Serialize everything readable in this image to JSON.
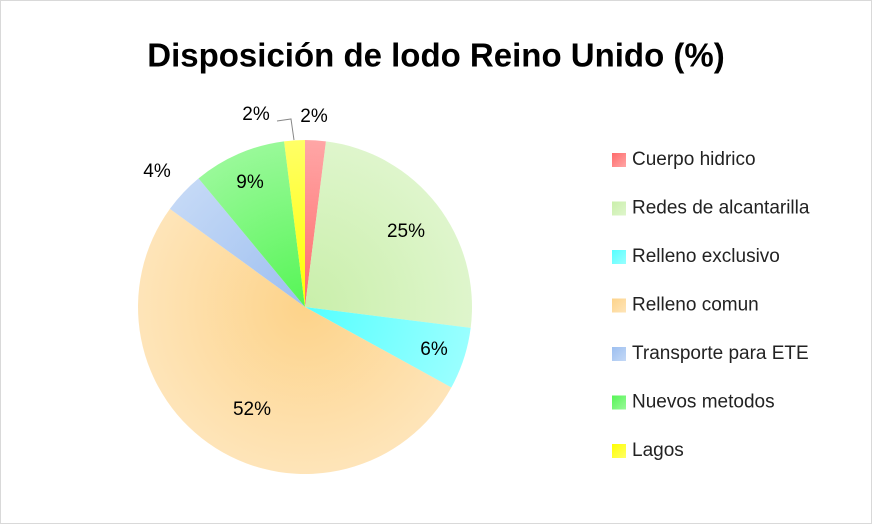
{
  "chart_data": {
    "type": "pie",
    "title": "Disposición de lodo Reino Unido (%)",
    "categories": [
      "Cuerpo hidrico",
      "Redes de alcantarilla",
      "Relleno exclusivo",
      "Relleno comun",
      "Transporte para ETE",
      "Nuevos metodos",
      "Lagos"
    ],
    "values": [
      2,
      25,
      6,
      52,
      4,
      9,
      2
    ],
    "value_labels": [
      "2%",
      "25%",
      "6%",
      "52%",
      "4%",
      "9%",
      "2%"
    ],
    "colors": [
      "#ff6b6b",
      "#c9efaa",
      "#55ffff",
      "#fdd38a",
      "#9dbff0",
      "#55f555",
      "#ffff00"
    ],
    "legend": "right"
  }
}
